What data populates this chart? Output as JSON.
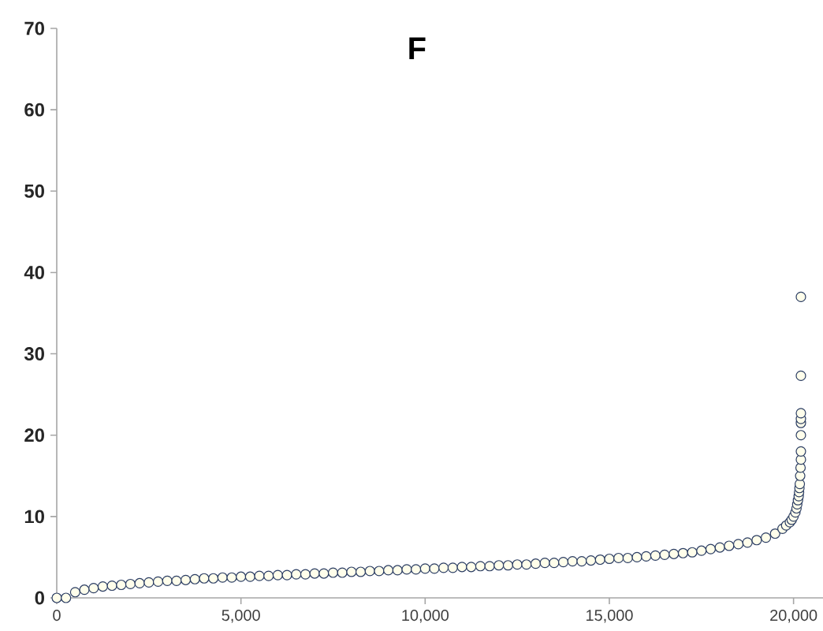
{
  "chart_data": {
    "type": "scatter",
    "title": "F",
    "marker": "circle",
    "grid": false,
    "xlim": [
      0,
      20800
    ],
    "ylim": [
      0,
      70
    ],
    "xticks": [
      0,
      {
        "value": 5000,
        "label": "5,000"
      },
      {
        "value": 10000,
        "label": "10,000"
      },
      {
        "value": 15000,
        "label": "15,000"
      },
      {
        "value": 20000,
        "label": "20,000"
      }
    ],
    "yticks": [
      0,
      10,
      20,
      30,
      40,
      50,
      60,
      70
    ],
    "series": [
      {
        "color": "#2b3d63",
        "x": [
          0,
          250,
          500,
          750,
          1000,
          1250,
          1500,
          1750,
          2000,
          2250,
          2500,
          2750,
          3000,
          3250,
          3500,
          3750,
          4000,
          4250,
          4500,
          4750,
          5000,
          5250,
          5500,
          5750,
          6000,
          6250,
          6500,
          6750,
          7000,
          7250,
          7500,
          7750,
          8000,
          8250,
          8500,
          8750,
          9000,
          9250,
          9500,
          9750,
          10000,
          10250,
          10500,
          10750,
          11000,
          11250,
          11500,
          11750,
          12000,
          12250,
          12500,
          12750,
          13000,
          13250,
          13500,
          13750,
          14000,
          14250,
          14500,
          14750,
          15000,
          15250,
          15500,
          15750,
          16000,
          16250,
          16500,
          16750,
          17000,
          17250,
          17500,
          17750,
          18000,
          18250,
          18500,
          18750,
          19000,
          19250,
          19500,
          19700,
          19800,
          19900,
          19950,
          20000,
          20050,
          20080,
          20100,
          20120,
          20140,
          20150,
          20160,
          20170,
          20180,
          20190,
          20200,
          20200,
          20200,
          20200,
          20200,
          20200,
          20200,
          20200
        ],
        "values": [
          0,
          0,
          0.7,
          1.0,
          1.2,
          1.4,
          1.5,
          1.6,
          1.7,
          1.8,
          1.9,
          2.0,
          2.1,
          2.1,
          2.2,
          2.3,
          2.4,
          2.4,
          2.5,
          2.5,
          2.6,
          2.6,
          2.7,
          2.7,
          2.8,
          2.8,
          2.9,
          2.9,
          3.0,
          3.0,
          3.1,
          3.1,
          3.2,
          3.2,
          3.3,
          3.3,
          3.4,
          3.4,
          3.5,
          3.5,
          3.6,
          3.6,
          3.7,
          3.7,
          3.8,
          3.8,
          3.9,
          3.9,
          4.0,
          4.0,
          4.1,
          4.1,
          4.2,
          4.3,
          4.3,
          4.4,
          4.5,
          4.5,
          4.6,
          4.7,
          4.8,
          4.9,
          4.9,
          5.0,
          5.1,
          5.2,
          5.3,
          5.4,
          5.5,
          5.6,
          5.8,
          6.0,
          6.2,
          6.4,
          6.6,
          6.8,
          7.1,
          7.4,
          7.9,
          8.5,
          8.9,
          9.3,
          9.6,
          10,
          10.5,
          11,
          11.5,
          12,
          12.5,
          13,
          13.5,
          14,
          15,
          16,
          17,
          18,
          20,
          21.5,
          22,
          22.7,
          27.3,
          37
        ]
      }
    ]
  }
}
